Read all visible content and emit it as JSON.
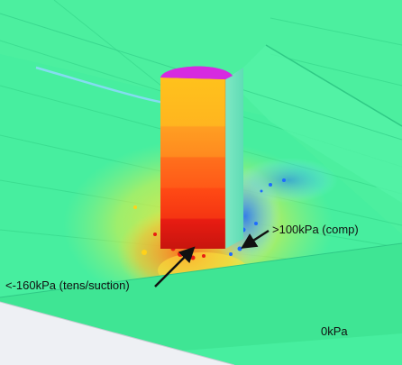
{
  "annotations": {
    "compression": ">100kPa (comp)",
    "tension": "<-160kPa (tens/suction)",
    "zero": "0kPa"
  },
  "colors": {
    "background_mesh": "#47ee9f",
    "lower_face": "#3fe594",
    "floor": "#eef0f4",
    "pile_top": "#d62ae0",
    "compression": "#1e6bff",
    "tension": "#e81c12",
    "arrow": "#111111"
  }
}
